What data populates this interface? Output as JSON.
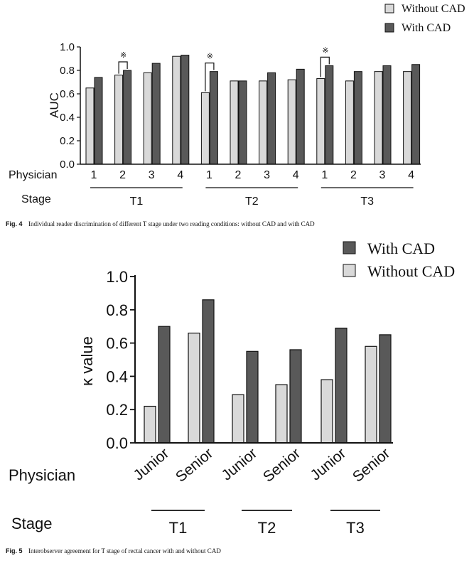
{
  "colors": {
    "without_cad": "#d9d9d9",
    "with_cad": "#595959",
    "axis": "#111111"
  },
  "chart_data": [
    {
      "type": "bar",
      "ylabel": "AUC",
      "ylim": [
        0,
        1.0
      ],
      "yticks": [
        "0.0",
        "0.2",
        "0.4",
        "0.6",
        "0.8",
        "1.0"
      ],
      "row_labels": {
        "physician": "Physician",
        "stage": "Stage"
      },
      "categories": [
        "1",
        "2",
        "3",
        "4",
        "1",
        "2",
        "3",
        "4",
        "1",
        "2",
        "3",
        "4"
      ],
      "groups": [
        "T1",
        "T2",
        "T3"
      ],
      "significance_marker": "※",
      "significant_indices": [
        1,
        4,
        8
      ],
      "legend_position": "top-right",
      "series": [
        {
          "name": "Without CAD",
          "values": [
            0.65,
            0.76,
            0.78,
            0.92,
            0.61,
            0.71,
            0.71,
            0.72,
            0.73,
            0.71,
            0.79,
            0.79
          ]
        },
        {
          "name": "With CAD",
          "values": [
            0.74,
            0.8,
            0.86,
            0.93,
            0.79,
            0.71,
            0.78,
            0.81,
            0.84,
            0.79,
            0.84,
            0.85
          ]
        }
      ]
    },
    {
      "type": "bar",
      "ylabel": "κ value",
      "ylim": [
        0,
        1.0
      ],
      "yticks": [
        "0.0",
        "0.2",
        "0.4",
        "0.6",
        "0.8",
        "1.0"
      ],
      "row_labels": {
        "physician": "Physician",
        "stage": "Stage"
      },
      "categories": [
        "Junior",
        "Senior",
        "Junior",
        "Senior",
        "Junior",
        "Senior"
      ],
      "groups": [
        "T1",
        "T2",
        "T3"
      ],
      "legend_position": "top-right",
      "series": [
        {
          "name": "Without CAD",
          "values": [
            0.22,
            0.66,
            0.29,
            0.35,
            0.38,
            0.58
          ]
        },
        {
          "name": "With CAD",
          "values": [
            0.7,
            0.86,
            0.55,
            0.56,
            0.69,
            0.65
          ]
        }
      ]
    }
  ],
  "captions": {
    "fig4_label": "Fig. 4",
    "fig4_text": "Individual reader discrimination of different T stage under two reading conditions: without CAD and with CAD",
    "fig5_label": "Fig. 5",
    "fig5_text": "Interobserver agreement for T stage of rectal cancer with and without CAD"
  }
}
